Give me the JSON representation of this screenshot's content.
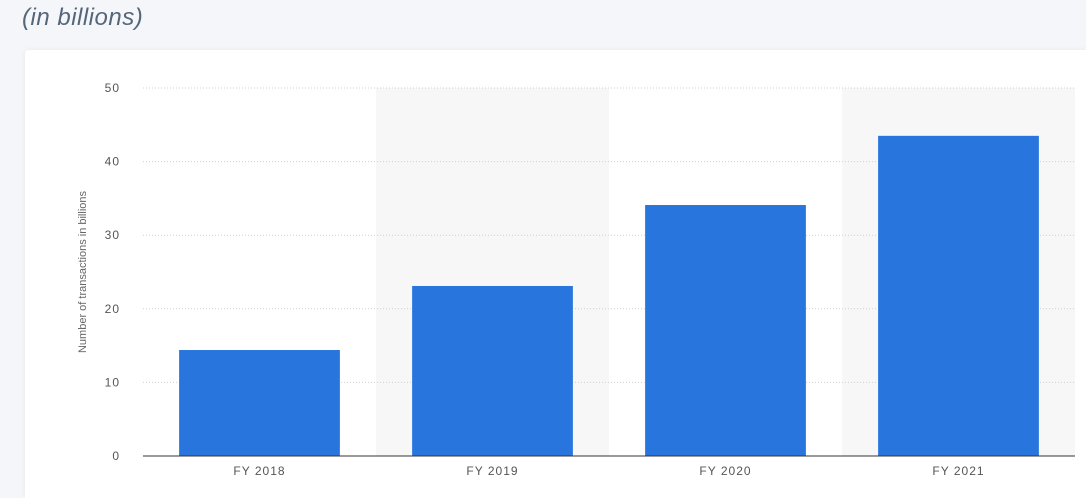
{
  "subtitle": "(in billions)",
  "chart_data": {
    "type": "bar",
    "categories": [
      "FY 2018",
      "FY 2019",
      "FY 2020",
      "FY 2021"
    ],
    "values": [
      14.4,
      23.1,
      34.1,
      43.5
    ],
    "title": "",
    "xlabel": "",
    "ylabel": "Number of transactions in billions",
    "ylim": [
      0,
      50
    ],
    "yticks": [
      0,
      10,
      20,
      30,
      40,
      50
    ],
    "grid": true,
    "colors": {
      "bar": "#2876dd",
      "band": "#f7f7f7",
      "grid": "#cfcfcf",
      "axis": "#333333"
    }
  }
}
